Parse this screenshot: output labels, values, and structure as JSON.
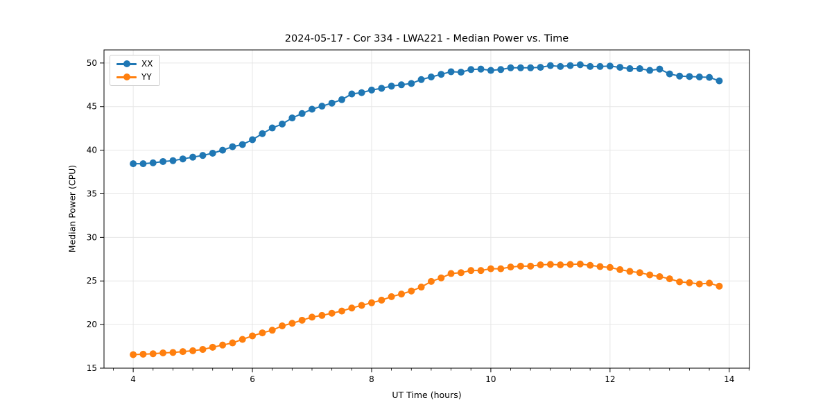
{
  "chart_data": {
    "type": "line",
    "title": "2024-05-17 - Cor 334 - LWA221 - Median Power vs. Time",
    "xlabel": "UT Time (hours)",
    "ylabel": "Median Power (CPU)",
    "xlim": [
      3.51,
      14.34
    ],
    "ylim": [
      15,
      51.5
    ],
    "xticks": [
      4,
      6,
      8,
      10,
      12,
      14
    ],
    "x_minor_tick_step": 0.3333,
    "yticks": [
      15,
      20,
      25,
      30,
      35,
      40,
      45,
      50
    ],
    "grid": true,
    "grid_color": "#e6e6e6",
    "legend_position": "upper-left",
    "background_color": "#ffffff",
    "x": [
      4.0,
      4.167,
      4.333,
      4.5,
      4.667,
      4.833,
      5.0,
      5.167,
      5.333,
      5.5,
      5.667,
      5.833,
      6.0,
      6.167,
      6.333,
      6.5,
      6.667,
      6.833,
      7.0,
      7.167,
      7.333,
      7.5,
      7.667,
      7.833,
      8.0,
      8.167,
      8.333,
      8.5,
      8.667,
      8.833,
      9.0,
      9.167,
      9.333,
      9.5,
      9.667,
      9.833,
      10.0,
      10.167,
      10.333,
      10.5,
      10.667,
      10.833,
      11.0,
      11.167,
      11.333,
      11.5,
      11.667,
      11.833,
      12.0,
      12.167,
      12.333,
      12.5,
      12.667,
      12.833,
      13.0,
      13.167,
      13.333,
      13.5,
      13.667,
      13.833
    ],
    "series": [
      {
        "name": "XX",
        "color": "#1f77b4",
        "marker": "circle",
        "values": [
          38.45,
          38.45,
          38.55,
          38.7,
          38.8,
          39.0,
          39.2,
          39.4,
          39.65,
          40.0,
          40.4,
          40.65,
          41.2,
          41.9,
          42.55,
          43.0,
          43.7,
          44.2,
          44.7,
          45.05,
          45.4,
          45.8,
          46.45,
          46.6,
          46.9,
          47.1,
          47.35,
          47.5,
          47.65,
          48.1,
          48.4,
          48.7,
          49.0,
          48.95,
          49.25,
          49.3,
          49.15,
          49.25,
          49.45,
          49.45,
          49.45,
          49.5,
          49.7,
          49.6,
          49.7,
          49.8,
          49.6,
          49.6,
          49.65,
          49.5,
          49.35,
          49.35,
          49.15,
          49.3,
          48.75,
          48.5,
          48.45,
          48.4,
          48.35,
          47.95
        ]
      },
      {
        "name": "YY",
        "color": "#ff7f0e",
        "marker": "circle",
        "values": [
          16.55,
          16.6,
          16.65,
          16.75,
          16.8,
          16.9,
          17.0,
          17.15,
          17.4,
          17.65,
          17.9,
          18.3,
          18.7,
          19.05,
          19.35,
          19.85,
          20.15,
          20.5,
          20.85,
          21.05,
          21.3,
          21.55,
          21.9,
          22.2,
          22.5,
          22.8,
          23.2,
          23.5,
          23.85,
          24.3,
          24.95,
          25.35,
          25.85,
          25.95,
          26.2,
          26.2,
          26.4,
          26.4,
          26.6,
          26.7,
          26.7,
          26.85,
          26.9,
          26.85,
          26.9,
          26.95,
          26.8,
          26.65,
          26.55,
          26.3,
          26.1,
          25.95,
          25.7,
          25.5,
          25.25,
          24.9,
          24.8,
          24.65,
          24.75,
          24.4
        ]
      }
    ]
  }
}
